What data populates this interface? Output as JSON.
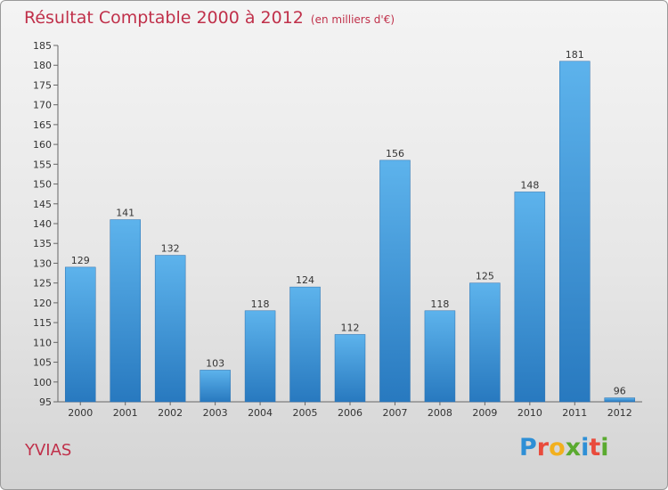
{
  "header": {
    "title": "Résultat Comptable 2000 à 2012",
    "subtitle": "(en milliers d'€)"
  },
  "footer": {
    "commune": "YVIAS",
    "logo": "Proxiti"
  },
  "logo_letters": [
    {
      "char": "P",
      "color": "#2e8fd6"
    },
    {
      "char": "r",
      "color": "#e94b3c"
    },
    {
      "char": "o",
      "color": "#f2b01e"
    },
    {
      "char": "x",
      "color": "#5aaa2f"
    },
    {
      "char": "i",
      "color": "#2e8fd6"
    },
    {
      "char": "t",
      "color": "#e94b3c"
    },
    {
      "char": "i",
      "color": "#5aaa2f"
    }
  ],
  "colors": {
    "title": "#c0304a",
    "bar_top": "#5db3ec",
    "bar_bottom": "#2879bf"
  },
  "chart_data": {
    "type": "bar",
    "title": "Résultat Comptable 2000 à 2012",
    "ylabel": "en milliers d'€",
    "xlabel": "",
    "categories": [
      "2000",
      "2001",
      "2002",
      "2003",
      "2004",
      "2005",
      "2006",
      "2007",
      "2008",
      "2009",
      "2010",
      "2011",
      "2012"
    ],
    "values": [
      129,
      141,
      132,
      103,
      118,
      124,
      112,
      156,
      118,
      125,
      148,
      181,
      96
    ],
    "ylim": [
      95,
      185
    ],
    "yticks": [
      95,
      100,
      105,
      110,
      115,
      120,
      125,
      130,
      135,
      140,
      145,
      150,
      155,
      160,
      165,
      170,
      175,
      180,
      185
    ],
    "grid": false,
    "legend": "none"
  }
}
